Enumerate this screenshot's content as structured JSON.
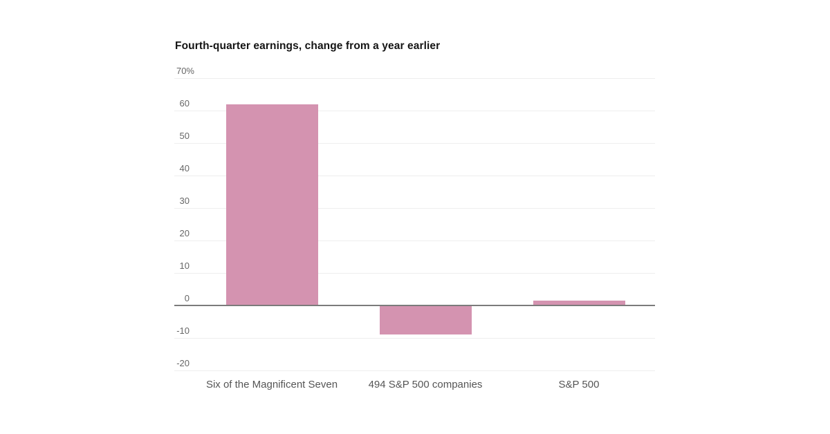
{
  "chart": {
    "title": "Fourth-quarter earnings, change from a year earlier"
  },
  "chart_data": {
    "type": "bar",
    "title": "Fourth-quarter earnings, change from a year earlier",
    "categories": [
      "Six of the Magnificent Seven",
      "494 S&P 500 companies",
      "S&P 500"
    ],
    "values": [
      62,
      -9,
      1.5
    ],
    "unit": "%",
    "xlabel": "",
    "ylabel": "",
    "ylim": [
      -20,
      70
    ],
    "ytick_values": [
      70,
      60,
      50,
      40,
      30,
      20,
      10,
      0,
      -10,
      -20
    ],
    "ytick_labels": [
      "70%",
      "60",
      "50",
      "40",
      "30",
      "20",
      "10",
      "0",
      "-10",
      "-20"
    ],
    "grid": true,
    "legend_position": "none",
    "colors": {
      "bar": "#d493b0",
      "gridline": "#eeeeee",
      "zero_line": "#7b7b7b",
      "title_text": "#141414",
      "tick_text": "#666666",
      "category_text": "#555555",
      "background": "#ffffff"
    }
  }
}
